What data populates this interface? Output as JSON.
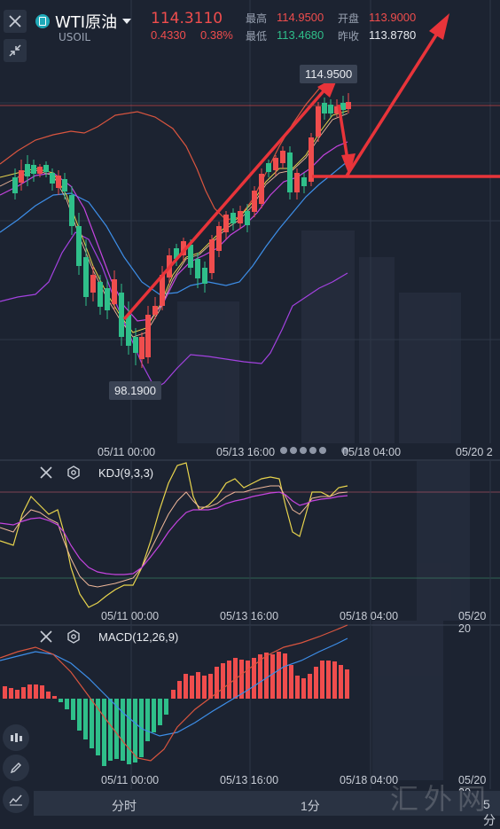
{
  "header": {
    "title": "WTI原油",
    "symbol": "USOIL",
    "price": "114.3110",
    "change": "0.4330",
    "change_pct": "0.38%",
    "high_label": "最高",
    "high": "114.9500",
    "low_label": "最低",
    "low": "113.4680",
    "open_label": "开盘",
    "open": "113.9000",
    "prev_close_label": "昨收",
    "prev_close": "113.8780"
  },
  "main_chart": {
    "high_marker": "114.9500",
    "low_marker": "98.1900",
    "x_ticks": [
      "05/11 00:00",
      "05/13 16:00",
      "05/18 04:00",
      "05/20 2"
    ]
  },
  "kdj_panel": {
    "title": "KDJ(9,3,3)",
    "x_ticks": [
      "05/11 00:00",
      "05/13 16:00",
      "05/18 04:00",
      "05/20 20"
    ]
  },
  "macd_panel": {
    "title": "MACD(12,26,9)",
    "x_ticks": [
      "05/11 00:00",
      "05/13 16:00",
      "05/18 04:00",
      "05/20 20"
    ]
  },
  "timeframes": [
    "分时",
    "1分",
    "5分"
  ],
  "watermark": "汇外网",
  "colors": {
    "up": "#ef4d4d",
    "down": "#2fbf8a",
    "background": "#1c2331",
    "arrow": "#e8343a"
  }
}
